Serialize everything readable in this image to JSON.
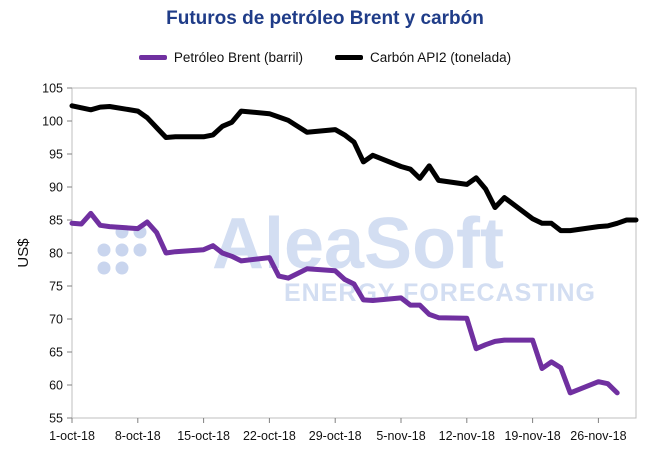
{
  "chart_data": {
    "type": "line",
    "title": "Futuros de petróleo Brent y carbón",
    "ylabel": "US$",
    "xlabel": "",
    "ylim": [
      55,
      105
    ],
    "yticks": [
      55,
      60,
      65,
      70,
      75,
      80,
      85,
      90,
      95,
      100,
      105
    ],
    "x_range": [
      "2018-10-01",
      "2018-11-30"
    ],
    "x_ticks": [
      "1-oct-18",
      "8-oct-18",
      "15-oct-18",
      "22-oct-18",
      "29-oct-18",
      "5-nov-18",
      "12-nov-18",
      "19-nov-18",
      "26-nov-18"
    ],
    "grid": false,
    "legend": "top",
    "watermark": {
      "brand": "AleaSoft",
      "tagline": "ENERGY FORECASTING"
    },
    "series": [
      {
        "name": "Petróleo Brent (barril)",
        "color": "#7030a0",
        "points": [
          [
            "2018-10-01",
            84.5
          ],
          [
            "2018-10-02",
            84.4
          ],
          [
            "2018-10-03",
            86.0
          ],
          [
            "2018-10-04",
            84.2
          ],
          [
            "2018-10-05",
            84.0
          ],
          [
            "2018-10-08",
            83.7
          ],
          [
            "2018-10-09",
            84.7
          ],
          [
            "2018-10-10",
            83.1
          ],
          [
            "2018-10-11",
            80.0
          ],
          [
            "2018-10-12",
            80.2
          ],
          [
            "2018-10-15",
            80.5
          ],
          [
            "2018-10-16",
            81.1
          ],
          [
            "2018-10-17",
            80.0
          ],
          [
            "2018-10-18",
            79.5
          ],
          [
            "2018-10-19",
            78.8
          ],
          [
            "2018-10-22",
            79.3
          ],
          [
            "2018-10-23",
            76.5
          ],
          [
            "2018-10-24",
            76.2
          ],
          [
            "2018-10-25",
            76.9
          ],
          [
            "2018-10-26",
            77.6
          ],
          [
            "2018-10-29",
            77.3
          ],
          [
            "2018-10-30",
            76.0
          ],
          [
            "2018-10-31",
            75.3
          ],
          [
            "2018-11-01",
            72.9
          ],
          [
            "2018-11-02",
            72.8
          ],
          [
            "2018-11-05",
            73.2
          ],
          [
            "2018-11-06",
            72.1
          ],
          [
            "2018-11-07",
            72.1
          ],
          [
            "2018-11-08",
            70.7
          ],
          [
            "2018-11-09",
            70.2
          ],
          [
            "2018-11-12",
            70.1
          ],
          [
            "2018-11-13",
            65.5
          ],
          [
            "2018-11-14",
            66.1
          ],
          [
            "2018-11-15",
            66.6
          ],
          [
            "2018-11-16",
            66.8
          ],
          [
            "2018-11-19",
            66.8
          ],
          [
            "2018-11-20",
            62.5
          ],
          [
            "2018-11-21",
            63.5
          ],
          [
            "2018-11-22",
            62.6
          ],
          [
            "2018-11-23",
            58.8
          ],
          [
            "2018-11-26",
            60.5
          ],
          [
            "2018-11-27",
            60.2
          ],
          [
            "2018-11-28",
            58.8
          ]
        ]
      },
      {
        "name": "Carbón API2 (tonelada)",
        "color": "#000000",
        "points": [
          [
            "2018-10-01",
            102.3
          ],
          [
            "2018-10-02",
            102.0
          ],
          [
            "2018-10-03",
            101.7
          ],
          [
            "2018-10-04",
            102.1
          ],
          [
            "2018-10-05",
            102.2
          ],
          [
            "2018-10-08",
            101.5
          ],
          [
            "2018-10-09",
            100.5
          ],
          [
            "2018-10-10",
            99.0
          ],
          [
            "2018-10-11",
            97.5
          ],
          [
            "2018-10-12",
            97.6
          ],
          [
            "2018-10-15",
            97.6
          ],
          [
            "2018-10-16",
            97.9
          ],
          [
            "2018-10-17",
            99.2
          ],
          [
            "2018-10-18",
            99.8
          ],
          [
            "2018-10-19",
            101.5
          ],
          [
            "2018-10-22",
            101.1
          ],
          [
            "2018-10-23",
            100.6
          ],
          [
            "2018-10-24",
            100.1
          ],
          [
            "2018-10-25",
            99.2
          ],
          [
            "2018-10-26",
            98.3
          ],
          [
            "2018-10-29",
            98.7
          ],
          [
            "2018-10-30",
            97.9
          ],
          [
            "2018-10-31",
            96.8
          ],
          [
            "2018-11-01",
            93.8
          ],
          [
            "2018-11-02",
            94.8
          ],
          [
            "2018-11-05",
            93.1
          ],
          [
            "2018-11-06",
            92.7
          ],
          [
            "2018-11-07",
            91.3
          ],
          [
            "2018-11-08",
            93.2
          ],
          [
            "2018-11-09",
            91.0
          ],
          [
            "2018-11-12",
            90.4
          ],
          [
            "2018-11-13",
            91.4
          ],
          [
            "2018-11-14",
            89.7
          ],
          [
            "2018-11-15",
            86.9
          ],
          [
            "2018-11-16",
            88.4
          ],
          [
            "2018-11-19",
            85.2
          ],
          [
            "2018-11-20",
            84.5
          ],
          [
            "2018-11-21",
            84.5
          ],
          [
            "2018-11-22",
            83.4
          ],
          [
            "2018-11-23",
            83.4
          ],
          [
            "2018-11-26",
            84.0
          ],
          [
            "2018-11-27",
            84.1
          ],
          [
            "2018-11-28",
            84.5
          ],
          [
            "2018-11-29",
            85.0
          ],
          [
            "2018-11-30",
            85.0
          ]
        ]
      }
    ]
  }
}
